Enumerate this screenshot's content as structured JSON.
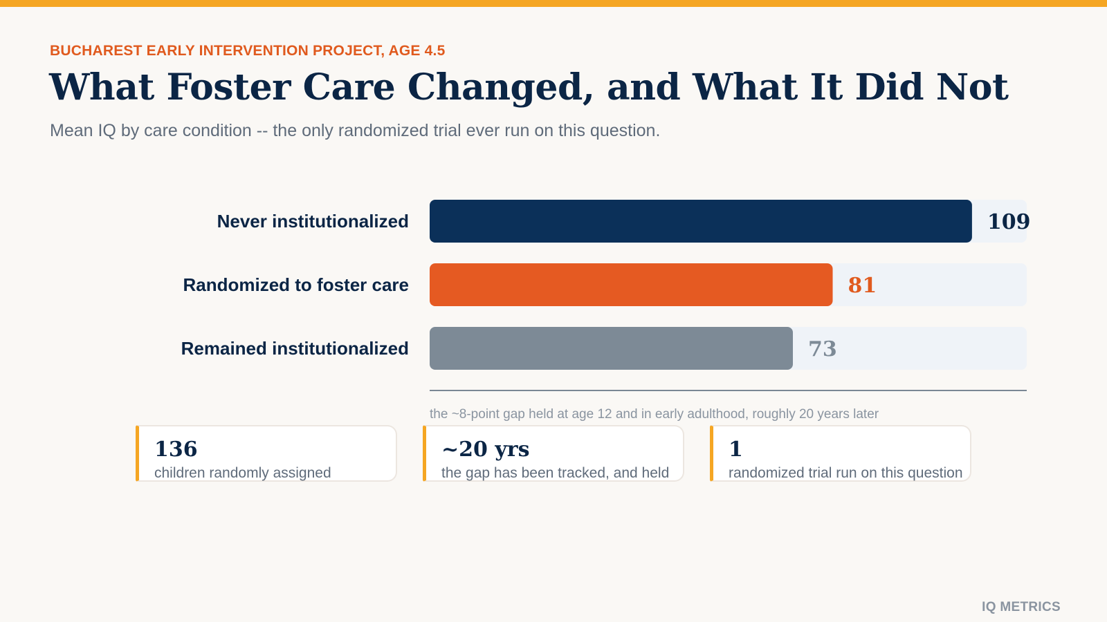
{
  "header": {
    "eyebrow": "BUCHAREST EARLY INTERVENTION PROJECT, AGE 4.5",
    "title": "What Foster Care Changed, and What It Did Not",
    "subtitle": "Mean IQ by care condition -- the only randomized trial ever run on this question."
  },
  "colors": {
    "accent_bar": "#F5A623",
    "eyebrow": "#E05A1E",
    "title": "#0B2545",
    "subtitle": "#5F6B7A",
    "track": "#EFF3F8",
    "axis": "#7A8794",
    "note": "#8A94A0",
    "brand": "#8A94A0"
  },
  "chart_data": {
    "type": "bar",
    "orientation": "horizontal",
    "categories": [
      "Never institutionalized",
      "Randomized to foster care",
      "Remained institutionalized"
    ],
    "values": [
      109,
      81,
      73
    ],
    "bar_colors": [
      "#0B3059",
      "#E55A22",
      "#7D8A96"
    ],
    "label_colors": [
      "#0B2545",
      "#E05A1E",
      "#7D8A96"
    ],
    "xlim": [
      0,
      120
    ],
    "grid": false,
    "value_labels": [
      "109",
      "81",
      "73"
    ]
  },
  "note": "the ~8-point gap held at age 12 and in early adulthood, roughly 20 years later",
  "stats": [
    {
      "value": "136",
      "desc": "children randomly assigned"
    },
    {
      "value": "~20 yrs",
      "desc": "the gap has been tracked, and held"
    },
    {
      "value": "1",
      "desc": "randomized trial run on this question"
    }
  ],
  "brand": "IQ METRICS"
}
